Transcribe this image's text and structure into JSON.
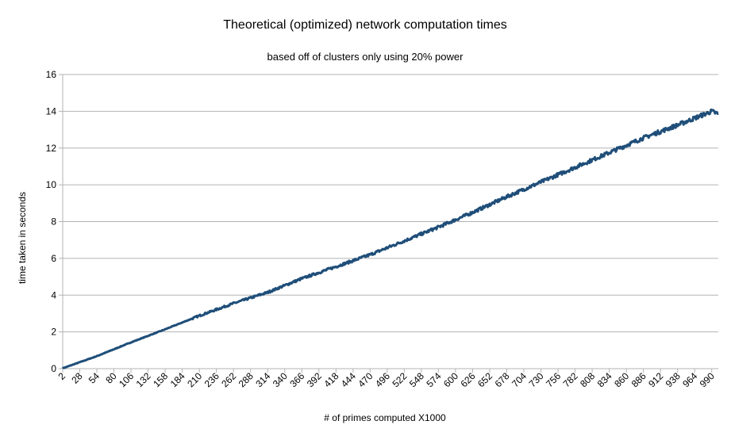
{
  "chart_data": {
    "type": "line",
    "title": "Theoretical (optimized) network computation times",
    "subtitle": "based off of clusters only using 20% power",
    "xlabel": "# of primes computed X1000",
    "ylabel": "time taken in seconds",
    "ylim": [
      0,
      16
    ],
    "yticks": [
      0,
      2,
      4,
      6,
      8,
      10,
      12,
      14,
      16
    ],
    "xlim": [
      2,
      1000
    ],
    "xticks": [
      2,
      28,
      54,
      80,
      106,
      132,
      158,
      184,
      210,
      236,
      262,
      288,
      314,
      340,
      366,
      392,
      418,
      444,
      470,
      496,
      522,
      548,
      574,
      600,
      626,
      652,
      678,
      704,
      730,
      756,
      782,
      808,
      834,
      860,
      886,
      912,
      938,
      964,
      990
    ],
    "grid": true,
    "legend": "none",
    "series_color": "#1f4e79",
    "series": [
      {
        "x": [
          2,
          54,
          106,
          158,
          210,
          262,
          314,
          366,
          418,
          470,
          522,
          574,
          626,
          678,
          730,
          782,
          834,
          886,
          938,
          990,
          1000
        ],
        "values": [
          0.02,
          0.68,
          1.43,
          2.14,
          2.88,
          3.55,
          4.15,
          4.9,
          5.55,
          6.2,
          6.95,
          7.7,
          8.5,
          9.35,
          10.15,
          10.95,
          11.75,
          12.55,
          13.25,
          14.0,
          13.85
        ]
      }
    ]
  }
}
